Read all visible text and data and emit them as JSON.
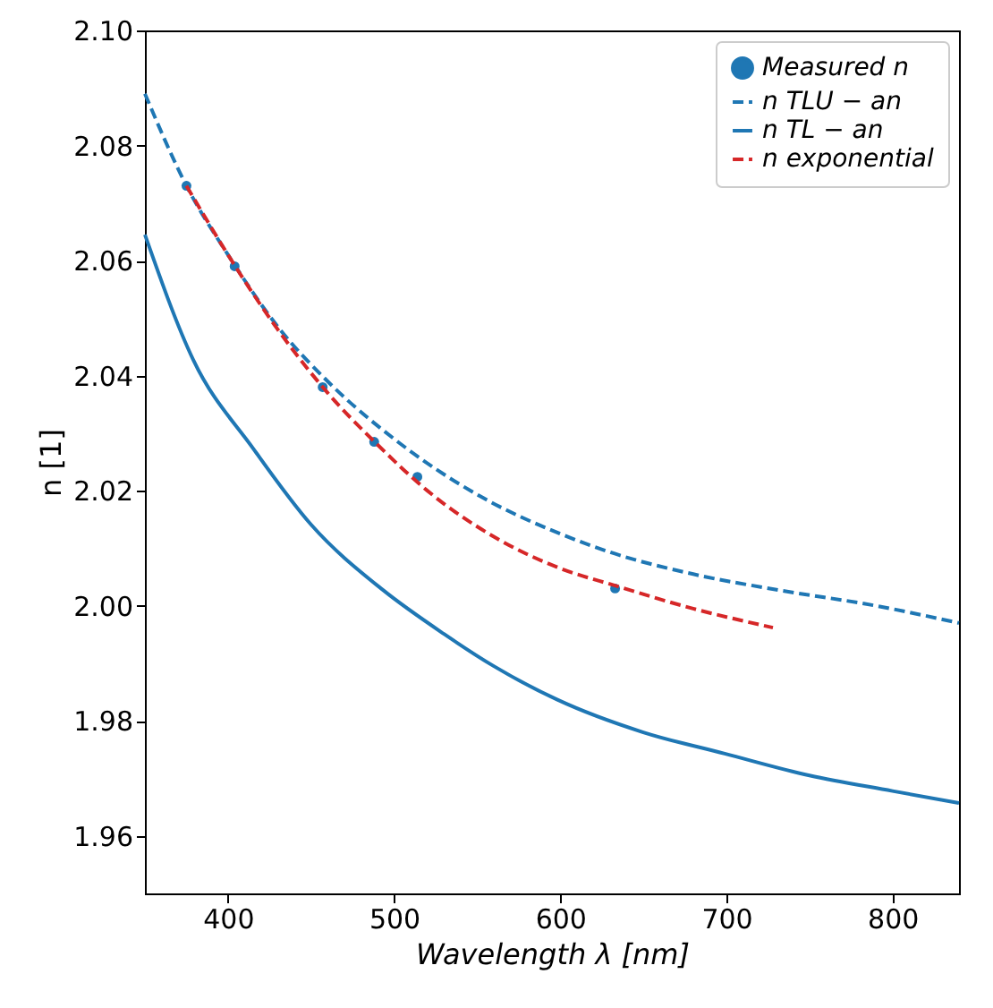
{
  "chart_data": {
    "type": "line",
    "xlabel": "Wavelength λ [nm]",
    "ylabel": "n [1]",
    "xlim": [
      350,
      840
    ],
    "ylim": [
      1.95,
      2.1
    ],
    "xticks": [
      400,
      500,
      600,
      700,
      800
    ],
    "yticks": [
      1.96,
      1.98,
      {
        "value": 2.0,
        "label": "2.00"
      },
      2.02,
      2.04,
      2.06,
      2.08,
      {
        "value": 2.1,
        "label": "2.10"
      }
    ],
    "grid": false,
    "legend": "top right",
    "series": [
      {
        "name": "Measured n",
        "type": "scatter",
        "marker": "circle",
        "color": "#1f77b4",
        "x": [
          375,
          404,
          457,
          488,
          514,
          633
        ],
        "values": [
          2.073,
          2.059,
          2.038,
          2.0285,
          2.0224,
          2.003
        ]
      },
      {
        "name": "n TLU − an",
        "line_style": "dashed",
        "color": "#1f77b4",
        "x": [
          350,
          375,
          400,
          430,
          460,
          500,
          552,
          600,
          629,
          680,
          732,
          790,
          840
        ],
        "values": [
          2.089,
          2.073,
          2.061,
          2.0485,
          2.039,
          2.029,
          2.019,
          2.0125,
          2.0094,
          2.0055,
          2.0027,
          2.0,
          1.997
        ]
      },
      {
        "name": "n TL − an",
        "line_style": "solid",
        "color": "#1f77b4",
        "x": [
          350,
          379,
          415,
          450,
          493,
          530,
          560,
          598,
          650,
          699,
          750,
          800,
          840
        ],
        "values": [
          2.0645,
          2.0428,
          2.0274,
          2.0141,
          2.0028,
          1.9951,
          1.9895,
          1.9837,
          1.978,
          1.9743,
          1.9705,
          1.9678,
          1.9657
        ]
      },
      {
        "name": "n exponential",
        "line_style": "dashed",
        "color": "#d62728",
        "x": [
          375,
          400,
          430,
          460,
          490,
          520,
          560,
          600,
          633,
          680,
          728
        ],
        "values": [
          2.073,
          2.061,
          2.048,
          2.037,
          2.028,
          2.02,
          2.012,
          2.0065,
          2.0035,
          1.9995,
          1.9962
        ]
      }
    ]
  }
}
